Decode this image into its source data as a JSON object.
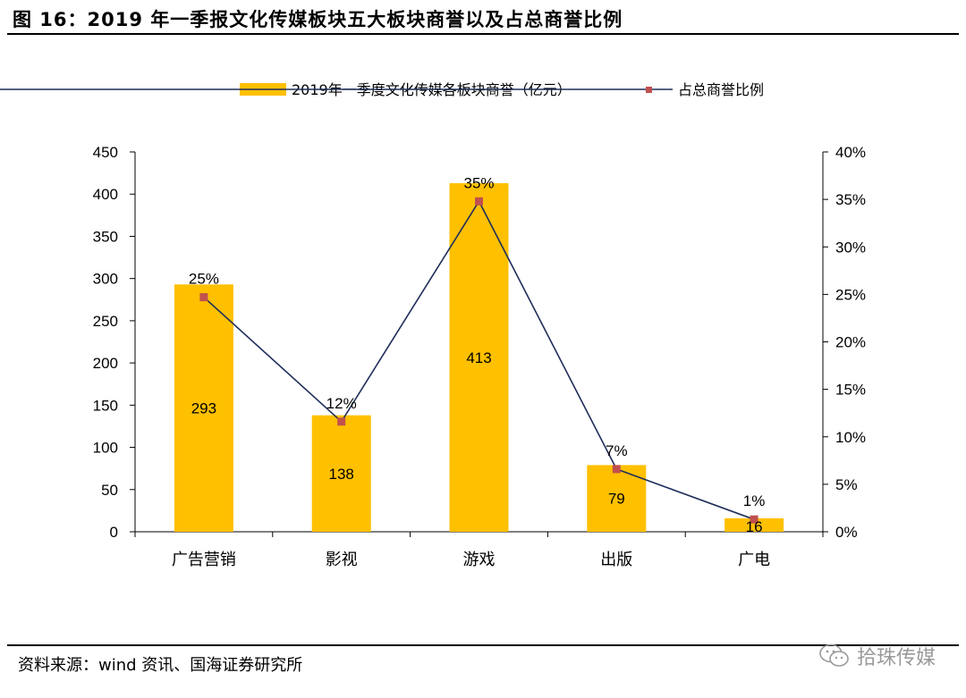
{
  "header": {
    "title": "图 16：2019 年一季报文化传媒板块五大板块商誉以及占总商誉比例"
  },
  "footer": {
    "source": "资料来源：wind 资讯、国海证券研究所",
    "watermark": "拾珠传媒"
  },
  "chart_data": {
    "type": "bar",
    "categories": [
      "广告营销",
      "影视",
      "游戏",
      "出版",
      "广电"
    ],
    "series": [
      {
        "name": "2019年一季度文化传媒各板块商誉（亿元）",
        "type": "bar",
        "axis": "left",
        "values": [
          293,
          138,
          413,
          79,
          16
        ],
        "labels": [
          "293",
          "138",
          "413",
          "79",
          "16"
        ],
        "color": "#FFC000"
      },
      {
        "name": "占总商誉比例",
        "type": "line",
        "axis": "right",
        "values": [
          24.7,
          11.6,
          34.8,
          6.6,
          1.3
        ],
        "labels": [
          "25%",
          "12%",
          "35%",
          "7%",
          "1%"
        ],
        "line_color": "#1F2D5A",
        "marker_color": "#C0504D"
      }
    ],
    "y_left": {
      "ylim": [
        0,
        450
      ],
      "ticks": [
        "0",
        "50",
        "100",
        "150",
        "200",
        "250",
        "300",
        "350",
        "400",
        "450"
      ]
    },
    "y_right": {
      "ylim": [
        0,
        40
      ],
      "ticks": [
        "0%",
        "5%",
        "10%",
        "15%",
        "20%",
        "25%",
        "30%",
        "35%",
        "40%"
      ]
    },
    "legend": "top",
    "grid": false
  }
}
